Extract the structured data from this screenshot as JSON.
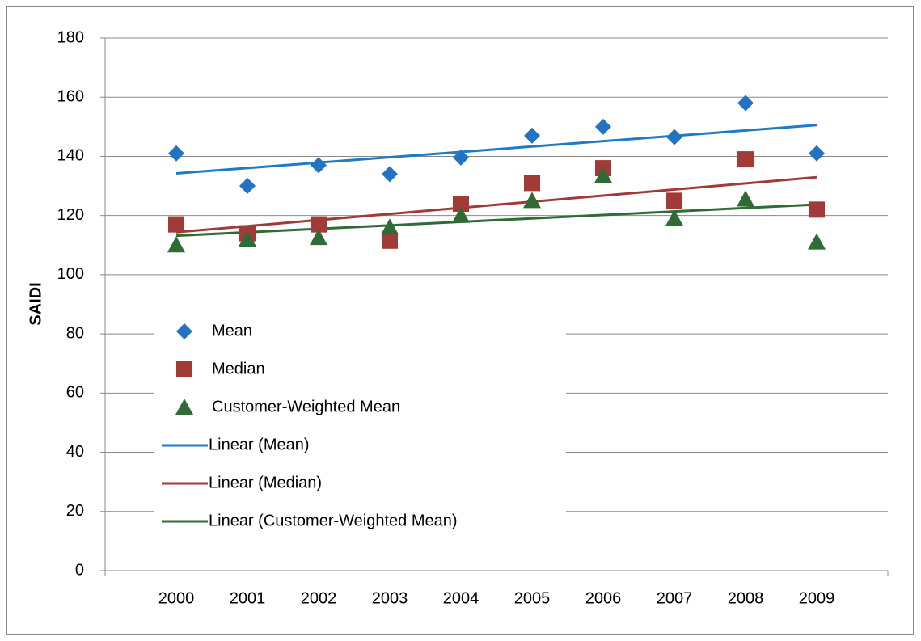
{
  "chart_data": {
    "type": "scatter",
    "y_label": "SAIDI",
    "xlim": [
      1999,
      2010
    ],
    "xticks": [
      2000,
      2001,
      2002,
      2003,
      2004,
      2005,
      2006,
      2007,
      2008,
      2009
    ],
    "ylim": [
      0,
      180
    ],
    "yticks": [
      0,
      20,
      40,
      60,
      80,
      100,
      120,
      140,
      160,
      180
    ],
    "grid": true,
    "x": [
      2000,
      2001,
      2002,
      2003,
      2004,
      2005,
      2006,
      2007,
      2008,
      2009
    ],
    "series": [
      {
        "name": "Mean",
        "color": "#2373c4",
        "marker": "diamond",
        "values": [
          141,
          130,
          137,
          134,
          139.6,
          147,
          150,
          146.5,
          158,
          141
        ],
        "trendline": {
          "name": "Linear (Mean)",
          "color": "#1f7bc7"
        }
      },
      {
        "name": "Median",
        "color": "#a23a37",
        "marker": "square",
        "values": [
          117,
          114,
          117,
          111.5,
          124,
          131,
          136,
          125,
          139,
          122
        ],
        "trendline": {
          "name": "Linear (Median)",
          "color": "#a23a37"
        }
      },
      {
        "name": "Customer-Weighted Mean",
        "color": "#2f6b35",
        "marker": "triangle",
        "values": [
          110,
          112,
          112.5,
          116,
          120,
          125,
          133.5,
          119,
          125.5,
          111
        ],
        "trendline": {
          "name": "Linear (Customer-Weighted Mean)",
          "color": "#2f6b35"
        }
      }
    ]
  }
}
